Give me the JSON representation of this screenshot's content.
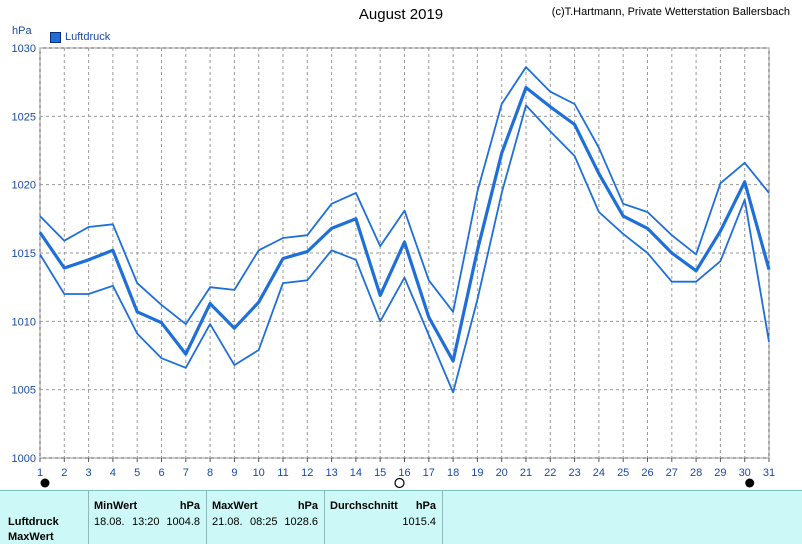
{
  "header": {
    "title": "August 2019",
    "credit": "(c)T.Hartmann, Private Wetterstation Ballersbach",
    "unit": "hPa",
    "legend_label": "Luftdruck"
  },
  "colors": {
    "line": "#1e6fd9",
    "grid": "#9a9a9a",
    "stats_bg": "#ccf9f7"
  },
  "chart_data": {
    "type": "line",
    "title": "August 2019",
    "ylabel": "hPa",
    "ylim": [
      1000,
      1030
    ],
    "yticks": [
      1000,
      1005,
      1010,
      1015,
      1020,
      1025,
      1030
    ],
    "x": [
      1,
      2,
      3,
      4,
      5,
      6,
      7,
      8,
      9,
      10,
      11,
      12,
      13,
      14,
      15,
      16,
      17,
      18,
      19,
      20,
      21,
      22,
      23,
      24,
      25,
      26,
      27,
      28,
      29,
      30,
      31
    ],
    "legend": [
      "Luftdruck"
    ],
    "grid": true,
    "series": [
      {
        "name": "Luftdruck",
        "values": [
          1016.5,
          1013.9,
          1014.5,
          1015.2,
          1010.7,
          1009.9,
          1007.6,
          1011.3,
          1009.5,
          1011.4,
          1014.6,
          1015.1,
          1016.8,
          1017.5,
          1011.9,
          1015.8,
          1010.3,
          1007.1,
          1015.2,
          1022.3,
          1027.1,
          1025.7,
          1024.4,
          1020.8,
          1017.7,
          1016.8,
          1015.0,
          1013.7,
          1016.6,
          1020.2,
          1013.8
        ]
      },
      {
        "values": [
          1017.7,
          1015.9,
          1016.9,
          1017.1,
          1012.8,
          1011.2,
          1009.8,
          1012.5,
          1012.3,
          1015.2,
          1016.1,
          1016.3,
          1018.6,
          1019.4,
          1015.5,
          1018.1,
          1013.0,
          1010.7,
          1019.5,
          1025.9,
          1028.6,
          1026.8,
          1025.9,
          1022.7,
          1018.6,
          1018.0,
          1016.3,
          1014.9,
          1020.1,
          1021.6,
          1019.4
        ]
      },
      {
        "values": [
          1014.9,
          1012.0,
          1012.0,
          1012.6,
          1009.1,
          1007.3,
          1006.6,
          1009.8,
          1006.8,
          1007.9,
          1012.8,
          1013.0,
          1015.2,
          1014.5,
          1010.0,
          1013.2,
          1009.0,
          1004.8,
          1011.6,
          1019.4,
          1025.8,
          1023.9,
          1022.1,
          1018.0,
          1016.4,
          1015.0,
          1012.9,
          1012.9,
          1014.4,
          1018.9,
          1008.5
        ]
      }
    ],
    "markers": {
      "new_moon": [
        1,
        30
      ],
      "full_moon": [
        16
      ]
    }
  },
  "stats": {
    "row_label": "Luftdruck",
    "row_label2": "MaxWert",
    "min": {
      "header": "MinWert",
      "unit": "hPa",
      "date": "18.08.",
      "time": "13:20",
      "value": "1004.8"
    },
    "max": {
      "header": "MaxWert",
      "unit": "hPa",
      "date": "21.08.",
      "time": "08:25",
      "value": "1028.6"
    },
    "avg": {
      "header": "Durchschnitt",
      "unit": "hPa",
      "value": "1015.4"
    }
  }
}
